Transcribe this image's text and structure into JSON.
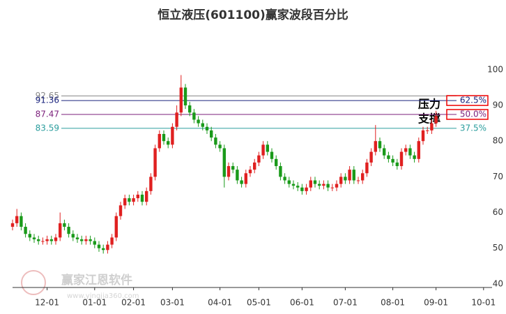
{
  "chart_data": {
    "type": "candlestick",
    "title": "恒立液压(601100)赢家波段百分比",
    "categories": [
      null,
      null,
      null,
      null,
      null,
      null,
      null,
      null,
      "12-01",
      null,
      null,
      null,
      null,
      null,
      null,
      null,
      null,
      null,
      null,
      "01-01",
      null,
      null,
      null,
      null,
      null,
      null,
      null,
      null,
      "02-01",
      null,
      null,
      null,
      null,
      null,
      null,
      null,
      null,
      "03-01",
      null,
      null,
      null,
      null,
      null,
      null,
      null,
      null,
      null,
      null,
      "04-01",
      null,
      null,
      null,
      null,
      null,
      null,
      null,
      null,
      "05-01",
      null,
      null,
      null,
      null,
      null,
      null,
      null,
      null,
      null,
      "06-01",
      null,
      null,
      null,
      null,
      null,
      null,
      null,
      null,
      null,
      "07-01",
      null,
      null,
      null,
      null,
      null,
      null,
      null,
      null,
      null,
      null,
      "08-01",
      null,
      null,
      null,
      null,
      null,
      null,
      null,
      null,
      null,
      "09-01",
      null,
      null,
      null,
      null,
      null,
      null,
      null,
      null,
      null,
      null,
      "10-01"
    ],
    "open": [
      56,
      57,
      59,
      56,
      54,
      53,
      52.5,
      52,
      52,
      52.5,
      52,
      53,
      57,
      56,
      54,
      53,
      52.5,
      52,
      52.5,
      52,
      51,
      50,
      49.5,
      51,
      53,
      59,
      62,
      64,
      63,
      64,
      65,
      63,
      66,
      70,
      78,
      82,
      80,
      79,
      84,
      88,
      95,
      90,
      88,
      86,
      85,
      84,
      83,
      81,
      79,
      78,
      70,
      73,
      72,
      69,
      68,
      71,
      72,
      74,
      76,
      79,
      77,
      75,
      73,
      70,
      69,
      68,
      67.5,
      67,
      66,
      67,
      69,
      68,
      67.5,
      68,
      67,
      67,
      68,
      70,
      69,
      72,
      69,
      69,
      71,
      74,
      77,
      80,
      78,
      76,
      75,
      74,
      73,
      77,
      78,
      76,
      75,
      80,
      83,
      83,
      85,
      null,
      null,
      null,
      null,
      null,
      null,
      null,
      null,
      null,
      null,
      null
    ],
    "high": [
      58,
      61,
      60,
      57,
      55,
      54,
      53.5,
      53,
      53.5,
      53.5,
      54,
      60,
      58,
      57,
      55,
      54,
      53.5,
      53.5,
      53.5,
      53,
      52,
      51,
      52,
      54,
      60,
      63,
      65,
      65,
      65,
      66,
      66,
      67,
      71,
      79,
      83,
      83,
      81,
      85,
      90,
      98.5,
      96,
      91,
      89,
      87,
      86,
      85,
      84,
      82,
      80,
      79,
      74,
      74,
      73,
      70,
      72,
      73,
      75,
      77,
      80,
      80,
      78,
      76,
      74,
      71,
      70,
      69,
      68.5,
      68,
      68,
      70,
      70,
      69,
      69,
      69,
      68,
      69,
      71,
      71,
      73,
      73,
      70,
      72,
      75,
      78,
      84.5,
      81,
      79,
      77,
      76,
      75,
      78,
      79,
      79,
      77,
      81,
      84,
      84,
      86,
      88.5,
      null,
      null,
      null,
      null,
      null,
      null,
      null,
      null,
      null,
      null,
      null
    ],
    "low": [
      55,
      56,
      55,
      53,
      52,
      51.5,
      51,
      51,
      51,
      51,
      51,
      52,
      55,
      53,
      52,
      51.5,
      51,
      51,
      51,
      50,
      49,
      48.5,
      48.5,
      50,
      52,
      58,
      61,
      62,
      62,
      63,
      62,
      62,
      65,
      69,
      77,
      79,
      78,
      78,
      83,
      87,
      89,
      87,
      85,
      84,
      83,
      82,
      80,
      78,
      77,
      67,
      69,
      71,
      68,
      67,
      67,
      70,
      71,
      73,
      75,
      76,
      74,
      72,
      69,
      68,
      67,
      66.5,
      66,
      65,
      65,
      66,
      67,
      66.5,
      66.5,
      66,
      66,
      66,
      67,
      68,
      68,
      68,
      68,
      68,
      70,
      73,
      76,
      77,
      75,
      74,
      73,
      72,
      72,
      76,
      75,
      74,
      74,
      79,
      82,
      82,
      84,
      null,
      null,
      null,
      null,
      null,
      null,
      null,
      null,
      null,
      null,
      null
    ],
    "close": [
      57,
      59,
      56,
      54,
      53,
      52.5,
      52,
      52,
      52.5,
      52,
      53,
      57,
      56,
      54,
      53,
      52.5,
      52,
      52.5,
      52,
      51,
      50,
      49.5,
      51,
      53,
      59,
      62,
      64,
      63,
      64,
      65,
      63,
      66,
      70,
      78,
      82,
      80,
      79,
      84,
      88,
      95,
      90,
      88,
      86,
      85,
      84,
      83,
      81,
      79,
      78,
      70,
      73,
      72,
      69,
      68,
      71,
      72,
      74,
      76,
      79,
      77,
      75,
      73,
      70,
      69,
      68,
      67.5,
      67,
      66,
      67,
      69,
      68,
      67.5,
      68,
      67,
      67,
      68,
      70,
      69,
      72,
      69,
      69,
      71,
      74,
      77,
      80,
      78,
      76,
      75,
      74,
      73,
      77,
      78,
      76,
      75,
      80,
      83,
      83,
      85,
      87,
      null,
      null,
      null,
      null,
      null,
      null,
      null,
      null,
      null,
      null,
      null
    ],
    "up_color": "#e02020",
    "down_color": "#1a9a1a",
    "ylim": [
      39,
      111
    ],
    "yticks": [
      40,
      50,
      60,
      70,
      80,
      90,
      100
    ],
    "levels": [
      {
        "value": 92.65,
        "color": "#888888"
      },
      {
        "value": 91.36,
        "color": "#1a237e",
        "pct": "62.5%",
        "boxed": true
      },
      {
        "value": 87.47,
        "color": "#7b1f7b",
        "pct": "50.0%",
        "boxed": true
      },
      {
        "value": 83.59,
        "color": "#2a9d9d",
        "pct": "37.5%"
      }
    ],
    "resistance_label": "压力",
    "support_label": "支撑",
    "watermark": "赢家江恩软件",
    "watermark_url": "www.yingjia360.com"
  }
}
